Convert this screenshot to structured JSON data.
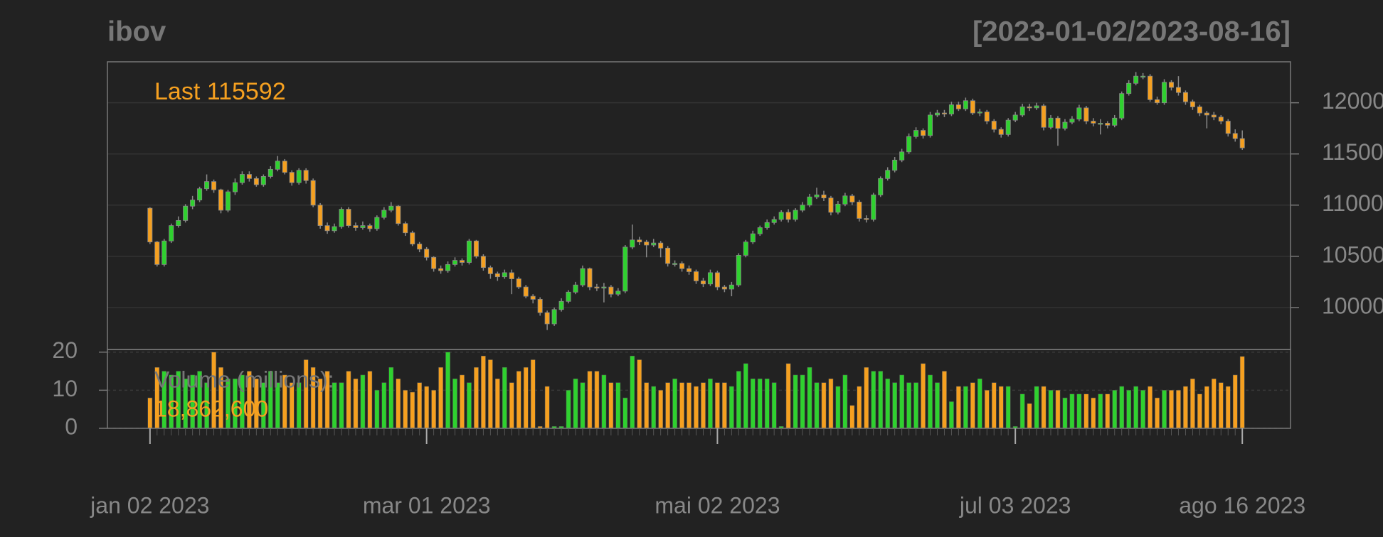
{
  "chart_data": [
    {
      "type": "candlestick",
      "title": "ibov",
      "subtitle": "[2023-01-02/2023-08-16]",
      "annotation": "Last 115592",
      "up_color": "#2fd12f",
      "down_color": "#f5a020",
      "wick_color": "#8a8a8a",
      "xlim": [
        -6,
        160.8
      ],
      "xticks": [
        {
          "value": 0,
          "label": "jan 02 2023"
        },
        {
          "value": 39,
          "label": "mar 01 2023"
        },
        {
          "value": 80,
          "label": "mai 02 2023"
        },
        {
          "value": 122,
          "label": "jul 03 2023"
        },
        {
          "value": 154,
          "label": "ago 16 2023"
        }
      ],
      "ylim": [
        95900,
        124000
      ],
      "yticks": [
        100000,
        105000,
        110000,
        115000,
        120000
      ],
      "grid": true,
      "open": [
        109700,
        106400,
        104200,
        106500,
        108000,
        108500,
        109900,
        110500,
        111600,
        112300,
        111500,
        109500,
        111300,
        112200,
        113000,
        112600,
        112000,
        112800,
        113500,
        114300,
        113200,
        112200,
        113400,
        112400,
        110000,
        108000,
        107500,
        107900,
        109600,
        108000,
        107800,
        108000,
        107700,
        108800,
        109500,
        109900,
        108200,
        107300,
        106200,
        105700,
        104900,
        103800,
        103600,
        104200,
        104600,
        104400,
        106500,
        105000,
        103900,
        103300,
        103000,
        103400,
        102800,
        102000,
        101100,
        100800,
        99500,
        98400,
        99800,
        100600,
        101500,
        102200,
        103800,
        102000,
        101900,
        102000,
        101300,
        101600,
        105900,
        106600,
        106400,
        106100,
        106300,
        105800,
        104300,
        104300,
        103800,
        103500,
        102600,
        102300,
        103400,
        102000,
        101800,
        102200,
        105100,
        106400,
        107200,
        107800,
        108300,
        108600,
        109300,
        108600,
        109500,
        110000,
        110800,
        111000,
        110700,
        109300,
        110100,
        110900,
        110300,
        108700,
        108600,
        111000,
        112600,
        113400,
        114400,
        115200,
        116700,
        117300,
        116800,
        118800,
        119000,
        118900,
        119800,
        119400,
        120200,
        119000,
        119100,
        118200,
        117400,
        116900,
        118300,
        118800,
        119600,
        119500,
        119700,
        117600,
        118500,
        117500,
        118100,
        118400,
        119500,
        118200,
        118000,
        118000,
        117800,
        118500,
        120900,
        121900,
        122600,
        122600,
        120300,
        120000,
        122000,
        121500,
        121000,
        120100,
        119600,
        119000,
        118800,
        118600,
        118200,
        117000,
        116500
      ],
      "high": [
        109800,
        106500,
        106700,
        108200,
        108900,
        110100,
        110900,
        111800,
        113000,
        112500,
        111600,
        111500,
        112600,
        113300,
        113300,
        112800,
        113000,
        113800,
        114800,
        114500,
        113400,
        113600,
        113600,
        112600,
        110200,
        108300,
        108200,
        109800,
        109800,
        108300,
        108400,
        108200,
        109000,
        109800,
        110300,
        110000,
        108400,
        107500,
        106400,
        105900,
        105000,
        104100,
        104500,
        104900,
        104800,
        106700,
        106600,
        105200,
        104100,
        103500,
        103700,
        103700,
        103000,
        102200,
        101300,
        101000,
        99700,
        100000,
        100900,
        101700,
        102500,
        104100,
        103900,
        102300,
        102400,
        102200,
        101900,
        106100,
        108100,
        106900,
        106600,
        106700,
        106500,
        106000,
        104600,
        104500,
        104100,
        103700,
        102900,
        103700,
        103600,
        102200,
        102500,
        105300,
        106600,
        107500,
        108000,
        108600,
        108900,
        109500,
        109600,
        109700,
        110300,
        111100,
        111700,
        111400,
        110900,
        110400,
        111200,
        111100,
        110500,
        109000,
        111200,
        112800,
        113700,
        114700,
        115500,
        117000,
        117600,
        117500,
        119100,
        119300,
        119300,
        120100,
        120100,
        120500,
        120400,
        119400,
        119300,
        118400,
        117600,
        118500,
        119100,
        119900,
        119900,
        120000,
        119900,
        118800,
        118700,
        118400,
        118700,
        119800,
        119700,
        118500,
        118400,
        118200,
        118800,
        121100,
        122200,
        123000,
        122900,
        122800,
        120600,
        122300,
        122200,
        122600,
        121200,
        120300,
        119800,
        119200,
        119100,
        118800,
        118400,
        117400,
        117300
      ],
      "low": [
        106200,
        104000,
        104000,
        106300,
        107800,
        108300,
        109600,
        110300,
        111400,
        111200,
        109200,
        109300,
        111000,
        112000,
        112300,
        111800,
        111800,
        112600,
        113300,
        113000,
        111900,
        112000,
        112100,
        109800,
        107700,
        107200,
        107300,
        107700,
        107800,
        107500,
        107600,
        107400,
        107500,
        108600,
        109300,
        108000,
        107000,
        106000,
        105400,
        104600,
        103500,
        103300,
        103400,
        104000,
        104100,
        104200,
        104800,
        103600,
        102800,
        102600,
        102800,
        101300,
        101800,
        100900,
        100400,
        99200,
        97800,
        98200,
        99600,
        100400,
        101300,
        102000,
        101700,
        101600,
        100500,
        101000,
        101100,
        101400,
        105700,
        106100,
        104900,
        105900,
        104900,
        104000,
        104000,
        103500,
        103200,
        102300,
        102000,
        102100,
        101700,
        101500,
        101100,
        102000,
        104900,
        106200,
        107000,
        107600,
        108100,
        108400,
        108300,
        108400,
        109300,
        109800,
        110600,
        110400,
        109000,
        109100,
        109900,
        110000,
        108400,
        108300,
        108400,
        110800,
        112400,
        113200,
        114200,
        115000,
        116500,
        116500,
        116600,
        118600,
        118600,
        118700,
        119200,
        119200,
        118800,
        118700,
        117900,
        117100,
        116600,
        116700,
        118100,
        118600,
        119200,
        119300,
        117300,
        117400,
        115800,
        117300,
        117900,
        118200,
        117900,
        117700,
        116900,
        117500,
        117600,
        118300,
        120700,
        121700,
        122300,
        120100,
        119800,
        119800,
        121200,
        120700,
        119800,
        119300,
        118700,
        117500,
        118300,
        117900,
        116700,
        116200,
        115400
      ],
      "close": [
        106400,
        104200,
        106500,
        108000,
        108500,
        109900,
        110500,
        111600,
        112300,
        111500,
        109500,
        111300,
        112200,
        113000,
        112600,
        112000,
        112800,
        113500,
        114300,
        113200,
        112200,
        113400,
        112400,
        110000,
        108000,
        107500,
        107900,
        109600,
        108000,
        107800,
        108000,
        107700,
        108800,
        109500,
        109900,
        108200,
        107300,
        106200,
        105700,
        104900,
        103800,
        103600,
        104200,
        104600,
        104400,
        106500,
        105000,
        103900,
        103300,
        103000,
        103400,
        102800,
        102000,
        101100,
        100800,
        99500,
        98400,
        99800,
        100600,
        101500,
        102200,
        103800,
        102000,
        101900,
        102000,
        101300,
        101600,
        105900,
        106600,
        106400,
        106100,
        106300,
        105800,
        104300,
        104300,
        103800,
        103500,
        102600,
        102300,
        103400,
        102000,
        101800,
        102200,
        105100,
        106400,
        107200,
        107800,
        108300,
        108600,
        109300,
        108600,
        109500,
        110000,
        110800,
        111000,
        110700,
        109300,
        110100,
        110900,
        110300,
        108700,
        108600,
        111000,
        112600,
        113400,
        114400,
        115200,
        116700,
        117300,
        116800,
        118800,
        119000,
        118900,
        119800,
        119400,
        120200,
        119000,
        119100,
        118200,
        117400,
        116900,
        118300,
        118800,
        119600,
        119500,
        119700,
        117600,
        118500,
        117500,
        118100,
        118400,
        119500,
        118200,
        118000,
        118000,
        117800,
        118500,
        120900,
        121900,
        122600,
        122600,
        120300,
        120000,
        122000,
        121500,
        121000,
        120100,
        119600,
        119000,
        118800,
        118600,
        118200,
        117000,
        116500,
        115592
      ]
    },
    {
      "type": "bar",
      "title": "Volume (millions):",
      "annotation": "18,862,600",
      "ylim": [
        0,
        20.7
      ],
      "yticks": [
        0,
        10,
        20
      ],
      "grid": true,
      "values": [
        8,
        16,
        15,
        14,
        15,
        13,
        14,
        15,
        12,
        20,
        16,
        13,
        13,
        14,
        15,
        13,
        12,
        15,
        12,
        14,
        12,
        12,
        18,
        16,
        13,
        15,
        12,
        12,
        15,
        13,
        14,
        15,
        10,
        12,
        16,
        13,
        10,
        9.5,
        12,
        11,
        10,
        16,
        20,
        13,
        14,
        12,
        16,
        19,
        18,
        13,
        16,
        12,
        15,
        16,
        18,
        0.5,
        11,
        0.5,
        0.5,
        10,
        13,
        12,
        15,
        15,
        14,
        12,
        12,
        8,
        19,
        18,
        12,
        11,
        10,
        12,
        13,
        12,
        12,
        11,
        12,
        13,
        12,
        12,
        11,
        15,
        17,
        13,
        13,
        13,
        12,
        0.5,
        17,
        14,
        14,
        16,
        12,
        12,
        13,
        11,
        14,
        6,
        11,
        16,
        15,
        15,
        13,
        12,
        14,
        12,
        12,
        17,
        14,
        12,
        15,
        7,
        11,
        11,
        12,
        13,
        10,
        12,
        11,
        11,
        0.5,
        9,
        6.5,
        11,
        11,
        10,
        10,
        8,
        9,
        9,
        9,
        8,
        9,
        9,
        10,
        11,
        10,
        11,
        10,
        11,
        8,
        10,
        10,
        10,
        11,
        13,
        9,
        11,
        13,
        12,
        11,
        14,
        18.8626
      ]
    }
  ]
}
